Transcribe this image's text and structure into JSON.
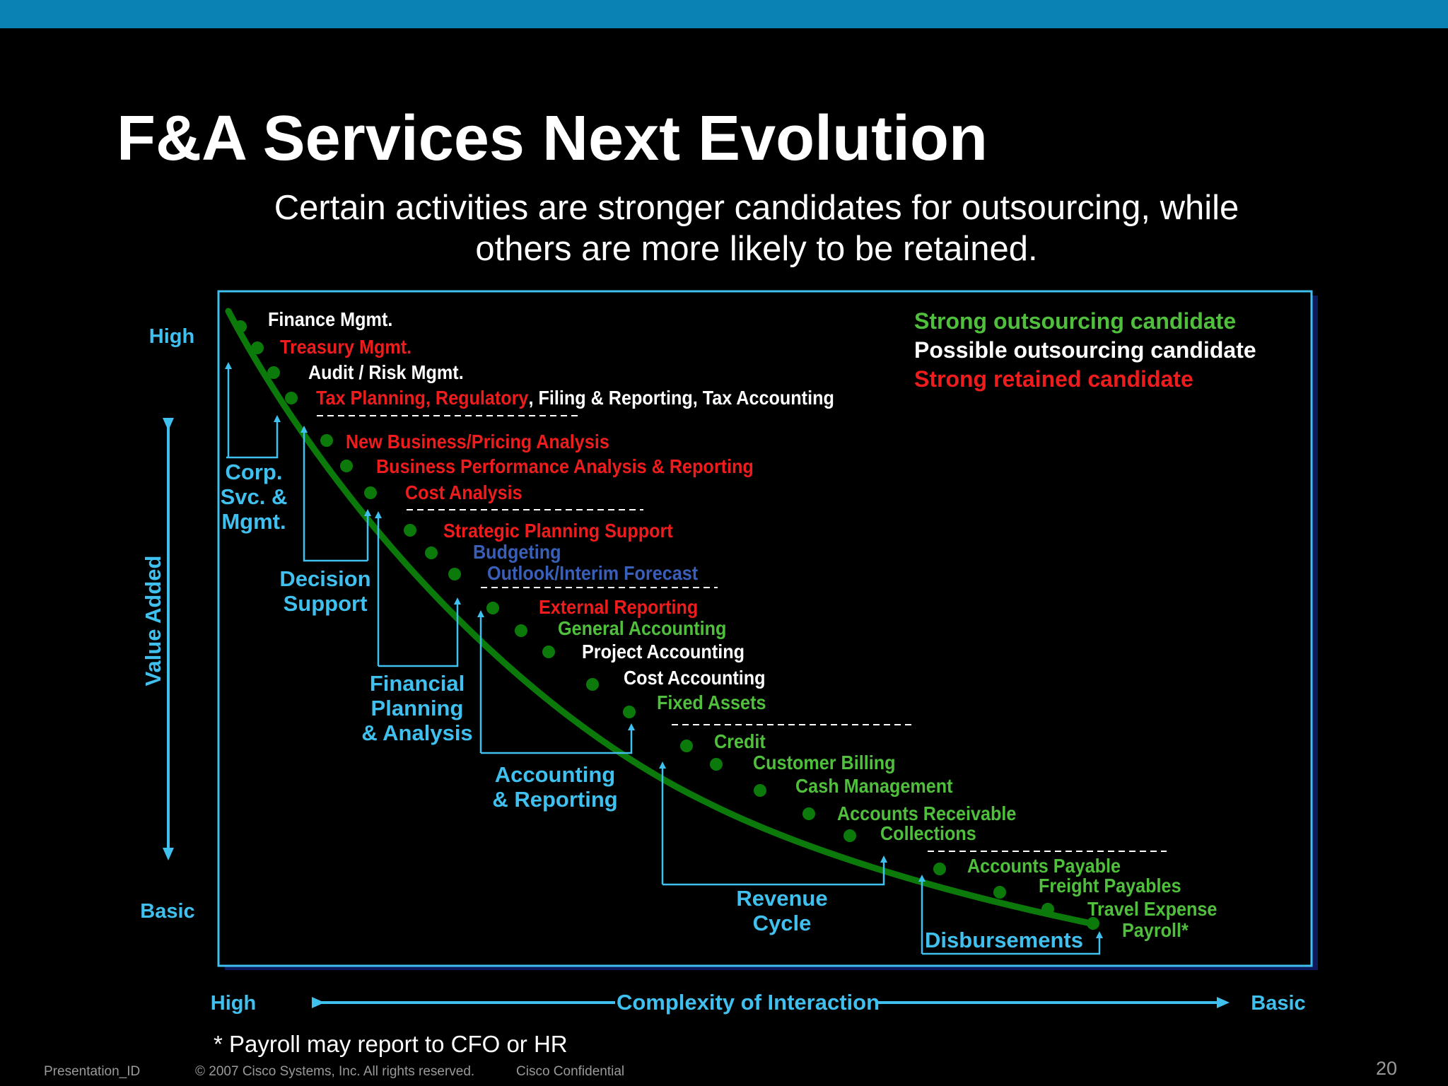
{
  "slide": {
    "title": "F&A Services Next Evolution",
    "subtitle_line1": "Certain activities are stronger candidates for outsourcing, while",
    "subtitle_line2": "others are more likely to be retained.",
    "footnote": "*  Payroll may report to CFO or HR",
    "footer_id": "Presentation_ID",
    "footer_copyright": "© 2007 Cisco Systems, Inc. All rights reserved.",
    "footer_confidential": "Cisco Confidential",
    "page_number": "20"
  },
  "colors": {
    "strong_outsourcing": "#4fbf3c",
    "possible_outsourcing": "#ffffff",
    "strong_retained": "#ee1c1c",
    "blue_item": "#3a5fb8",
    "cyan": "#3fc0ee",
    "curve": "#0b7a0b"
  },
  "legend": [
    {
      "text": "Strong outsourcing candidate",
      "category": "strong_outsourcing"
    },
    {
      "text": "Possible outsourcing candidate",
      "category": "possible_outsourcing"
    },
    {
      "text": "Strong retained candidate",
      "category": "strong_retained"
    }
  ],
  "axes": {
    "y_label": "Value Added",
    "y_high": "High",
    "y_low": "Basic",
    "x_label": "Complexity of Interaction",
    "x_high": "High",
    "x_low": "Basic"
  },
  "groups": [
    {
      "lines": [
        "Corp.",
        "Svc. &",
        "Mgmt."
      ]
    },
    {
      "lines": [
        "Decision",
        "Support"
      ]
    },
    {
      "lines": [
        "Financial",
        "Planning",
        "& Analysis"
      ]
    },
    {
      "lines": [
        "Accounting",
        "& Reporting"
      ]
    },
    {
      "lines": [
        "Revenue",
        "Cycle"
      ]
    },
    {
      "lines": [
        "Disbursements"
      ]
    }
  ],
  "activities": [
    {
      "segments": [
        {
          "text": "Finance Mgmt.",
          "category": "possible_outsourcing"
        }
      ]
    },
    {
      "segments": [
        {
          "text": "Treasury Mgmt.",
          "category": "strong_retained"
        }
      ]
    },
    {
      "segments": [
        {
          "text": "Audit / Risk Mgmt.",
          "category": "possible_outsourcing"
        }
      ]
    },
    {
      "segments": [
        {
          "text": "Tax Planning, Regulatory",
          "category": "strong_retained"
        },
        {
          "text": ", Filing & Reporting, Tax Accounting",
          "category": "possible_outsourcing"
        }
      ]
    },
    {
      "segments": [
        {
          "text": "New Business/Pricing Analysis",
          "category": "strong_retained"
        }
      ]
    },
    {
      "segments": [
        {
          "text": "Business Performance Analysis & Reporting",
          "category": "strong_retained"
        }
      ]
    },
    {
      "segments": [
        {
          "text": "Cost Analysis",
          "category": "strong_retained"
        }
      ]
    },
    {
      "segments": [
        {
          "text": "Strategic Planning Support",
          "category": "strong_retained"
        }
      ]
    },
    {
      "segments": [
        {
          "text": "Budgeting",
          "category": "blue_item"
        }
      ]
    },
    {
      "segments": [
        {
          "text": "Outlook/Interim Forecast",
          "category": "blue_item"
        }
      ]
    },
    {
      "segments": [
        {
          "text": "External Reporting",
          "category": "strong_retained"
        }
      ]
    },
    {
      "segments": [
        {
          "text": "General Accounting",
          "category": "strong_outsourcing"
        }
      ]
    },
    {
      "segments": [
        {
          "text": "Project Accounting",
          "category": "possible_outsourcing"
        }
      ]
    },
    {
      "segments": [
        {
          "text": "Cost Accounting",
          "category": "possible_outsourcing"
        }
      ]
    },
    {
      "segments": [
        {
          "text": "Fixed Assets",
          "category": "strong_outsourcing"
        }
      ]
    },
    {
      "segments": [
        {
          "text": "Credit",
          "category": "strong_outsourcing"
        }
      ]
    },
    {
      "segments": [
        {
          "text": "Customer Billing",
          "category": "strong_outsourcing"
        }
      ]
    },
    {
      "segments": [
        {
          "text": "Cash Management",
          "category": "strong_outsourcing"
        }
      ]
    },
    {
      "segments": [
        {
          "text": "Accounts Receivable",
          "category": "strong_outsourcing"
        }
      ]
    },
    {
      "segments": [
        {
          "text": "Collections",
          "category": "strong_outsourcing"
        }
      ]
    },
    {
      "segments": [
        {
          "text": "Accounts Payable",
          "category": "strong_outsourcing"
        }
      ]
    },
    {
      "segments": [
        {
          "text": "Freight Payables",
          "category": "strong_outsourcing"
        }
      ]
    },
    {
      "segments": [
        {
          "text": "Travel Expense",
          "category": "strong_outsourcing"
        }
      ]
    },
    {
      "segments": [
        {
          "text": "Payroll*",
          "category": "strong_outsourcing"
        }
      ]
    }
  ]
}
